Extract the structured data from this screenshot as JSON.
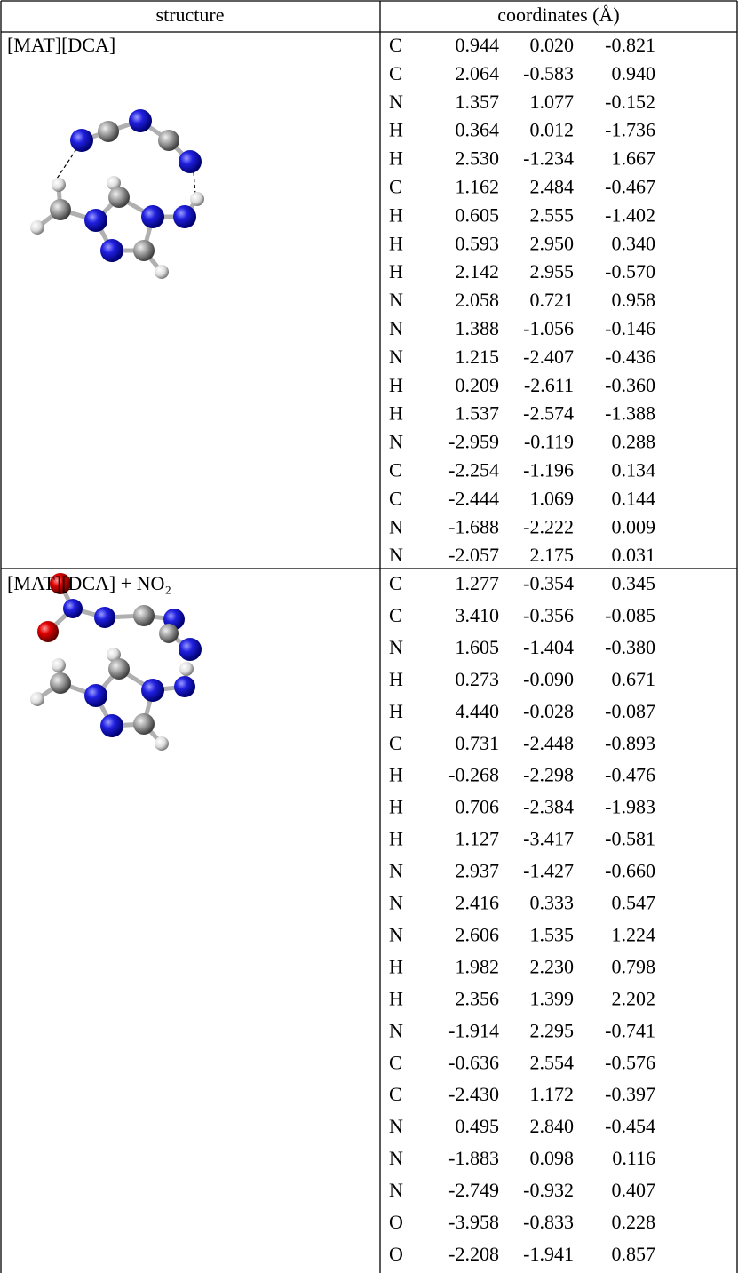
{
  "table": {
    "header": [
      "structure",
      "coordinates (Å)"
    ],
    "groups": [
      {
        "structure": "[MAT][DCA]",
        "atoms": [
          [
            "C",
            "0.944",
            "0.020",
            "-0.821"
          ],
          [
            "C",
            "2.064",
            "-0.583",
            "0.940"
          ],
          [
            "N",
            "1.357",
            "1.077",
            "-0.152"
          ],
          [
            "H",
            "0.364",
            "0.012",
            "-1.736"
          ],
          [
            "H",
            "2.530",
            "-1.234",
            "1.667"
          ],
          [
            "C",
            "1.162",
            "2.484",
            "-0.467"
          ],
          [
            "H",
            "0.605",
            "2.555",
            "-1.402"
          ],
          [
            "H",
            "0.593",
            "2.950",
            "0.340"
          ],
          [
            "H",
            "2.142",
            "2.955",
            "-0.570"
          ],
          [
            "N",
            "2.058",
            "0.721",
            "0.958"
          ],
          [
            "N",
            "1.388",
            "-1.056",
            "-0.146"
          ],
          [
            "N",
            "1.215",
            "-2.407",
            "-0.436"
          ],
          [
            "H",
            "0.209",
            "-2.611",
            "-0.360"
          ],
          [
            "H",
            "1.537",
            "-2.574",
            "-1.388"
          ],
          [
            "N",
            "-2.959",
            "-0.119",
            "0.288"
          ],
          [
            "C",
            "-2.254",
            "-1.196",
            "0.134"
          ],
          [
            "C",
            "-2.444",
            "1.069",
            "0.144"
          ],
          [
            "N",
            "-1.688",
            "-2.222",
            "0.009"
          ],
          [
            "N",
            "-2.057",
            "2.175",
            "0.031"
          ]
        ]
      },
      {
        "structure": "[MAT][DCA] + NO₂",
        "atoms": [
          [
            "C",
            "1.277",
            "-0.354",
            "0.345"
          ],
          [
            "C",
            "3.410",
            "-0.356",
            "-0.085"
          ],
          [
            "N",
            "1.605",
            "-1.404",
            "-0.380"
          ],
          [
            "H",
            "0.273",
            "-0.090",
            "0.671"
          ],
          [
            "H",
            "4.440",
            "-0.028",
            "-0.087"
          ],
          [
            "C",
            "0.731",
            "-2.448",
            "-0.893"
          ],
          [
            "H",
            "-0.268",
            "-2.298",
            "-0.476"
          ],
          [
            "H",
            "0.706",
            "-2.384",
            "-1.983"
          ],
          [
            "H",
            "1.127",
            "-3.417",
            "-0.581"
          ],
          [
            "N",
            "2.937",
            "-1.427",
            "-0.660"
          ],
          [
            "N",
            "2.416",
            "0.333",
            "0.547"
          ],
          [
            "N",
            "2.606",
            "1.535",
            "1.224"
          ],
          [
            "H",
            "1.982",
            "2.230",
            "0.798"
          ],
          [
            "H",
            "2.356",
            "1.399",
            "2.202"
          ],
          [
            "N",
            "-1.914",
            "2.295",
            "-0.741"
          ],
          [
            "C",
            "-0.636",
            "2.554",
            "-0.576"
          ],
          [
            "C",
            "-2.430",
            "1.172",
            "-0.397"
          ],
          [
            "N",
            "0.495",
            "2.840",
            "-0.454"
          ],
          [
            "N",
            "-1.883",
            "0.098",
            "0.116"
          ],
          [
            "N",
            "-2.749",
            "-0.932",
            "0.407"
          ],
          [
            "O",
            "-3.958",
            "-0.833",
            "0.228"
          ],
          [
            "O",
            "-2.208",
            "-1.941",
            "0.857"
          ]
        ]
      }
    ]
  }
}
